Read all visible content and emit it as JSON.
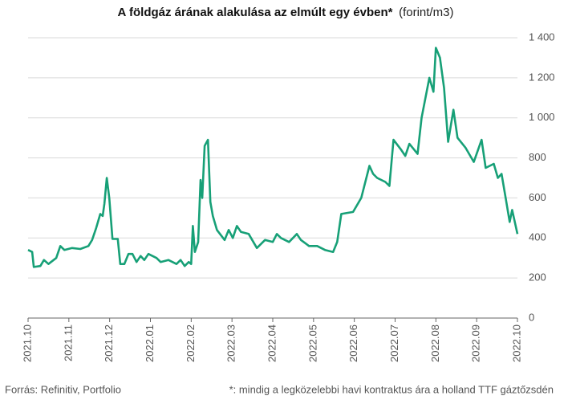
{
  "chart_data": {
    "type": "line",
    "title": "A földgáz árának alakulása az elmúlt egy évben*",
    "subtitle": "(forint/m3)",
    "source": "Forrás: Refinitiv, Portfolio",
    "note": "*: mindig a legközelebbi havi kontraktus ára a holland TTF gáztőzsdén",
    "x": [
      0,
      0.1,
      0.14,
      0.3,
      0.39,
      0.5,
      0.69,
      0.79,
      0.89,
      1.08,
      1.28,
      1.48,
      1.57,
      1.67,
      1.77,
      1.83,
      1.87,
      1.93,
      1.99,
      2.07,
      2.2,
      2.26,
      2.36,
      2.46,
      2.56,
      2.66,
      2.76,
      2.85,
      2.95,
      3.15,
      3.25,
      3.44,
      3.64,
      3.74,
      3.84,
      3.94,
      4.0,
      4.04,
      4.09,
      4.17,
      4.23,
      4.27,
      4.33,
      4.41,
      4.47,
      4.53,
      4.63,
      4.82,
      4.92,
      5.02,
      5.12,
      5.22,
      5.41,
      5.61,
      5.81,
      6.0,
      6.1,
      6.2,
      6.4,
      6.59,
      6.69,
      6.89,
      7.09,
      7.28,
      7.48,
      7.58,
      7.68,
      7.97,
      8.17,
      8.37,
      8.46,
      8.56,
      8.76,
      8.86,
      8.96,
      9.15,
      9.25,
      9.35,
      9.55,
      9.65,
      9.84,
      9.94,
      10.0,
      10.1,
      10.2,
      10.3,
      10.43,
      10.53,
      10.73,
      10.93,
      11.12,
      11.22,
      11.42,
      11.52,
      11.61,
      11.71,
      11.81,
      11.87,
      12.0
    ],
    "series": [
      {
        "name": "TTF",
        "color": "#17a077",
        "values": [
          340,
          330,
          255,
          260,
          290,
          270,
          300,
          360,
          340,
          350,
          345,
          360,
          390,
          450,
          520,
          510,
          570,
          700,
          600,
          395,
          395,
          270,
          270,
          320,
          320,
          280,
          310,
          290,
          320,
          300,
          280,
          290,
          270,
          290,
          260,
          280,
          270,
          460,
          330,
          380,
          690,
          600,
          860,
          890,
          580,
          510,
          440,
          390,
          440,
          400,
          460,
          430,
          420,
          350,
          390,
          380,
          420,
          400,
          380,
          420,
          390,
          360,
          360,
          340,
          330,
          380,
          520,
          530,
          600,
          760,
          720,
          700,
          680,
          660,
          890,
          840,
          810,
          870,
          820,
          1000,
          1200,
          1130,
          1350,
          1300,
          1150,
          880,
          1040,
          900,
          850,
          780,
          890,
          750,
          770,
          700,
          720,
          600,
          480,
          540,
          420
        ]
      }
    ],
    "xlim": [
      0,
      12
    ],
    "xticks": [
      {
        "value": 0,
        "label": "2021.10"
      },
      {
        "value": 1,
        "label": "2021.11"
      },
      {
        "value": 2,
        "label": "2021.12"
      },
      {
        "value": 3,
        "label": "2022.01"
      },
      {
        "value": 4,
        "label": "2022.02"
      },
      {
        "value": 5,
        "label": "2022.03"
      },
      {
        "value": 6,
        "label": "2022.04"
      },
      {
        "value": 7,
        "label": "2022.05"
      },
      {
        "value": 8,
        "label": "2022.06"
      },
      {
        "value": 9,
        "label": "2022.07"
      },
      {
        "value": 10,
        "label": "2022.08"
      },
      {
        "value": 11,
        "label": "2022.09"
      },
      {
        "value": 12,
        "label": "2022.10"
      }
    ],
    "ylim": [
      0,
      1400
    ],
    "yticks": [
      0,
      200,
      400,
      600,
      800,
      {
        "value": 1000,
        "label": "1 000"
      },
      {
        "value": 1200,
        "label": "1 200"
      },
      {
        "value": 1400,
        "label": "1 400"
      }
    ],
    "grid": true
  }
}
